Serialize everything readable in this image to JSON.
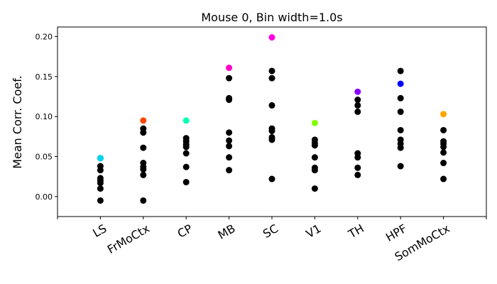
{
  "chart_data": {
    "type": "scatter",
    "title": "Mouse 0, Bin width=1.0s",
    "xlabel": "",
    "ylabel": "Mean Corr. Coef.",
    "ylim": [
      -0.025,
      0.212
    ],
    "yticks": [
      0.0,
      0.05,
      0.1,
      0.15,
      0.2
    ],
    "ytick_labels": [
      "0.00",
      "0.05",
      "0.10",
      "0.15",
      "0.20"
    ],
    "grid": false,
    "categories": [
      "LS",
      "FrMoCtx",
      "CP",
      "MB",
      "SC",
      "V1",
      "TH",
      "HPF",
      "SomMoCtx"
    ],
    "groups": [
      {
        "category": "LS",
        "highlight": {
          "value": 0.048,
          "color": "#00d4f0"
        },
        "values": [
          0.048,
          0.038,
          0.033,
          0.023,
          0.02,
          0.017,
          0.01,
          -0.005
        ]
      },
      {
        "category": "FrMoCtx",
        "highlight": {
          "value": 0.095,
          "color": "#ff4500"
        },
        "values": [
          0.085,
          0.08,
          0.061,
          0.042,
          0.037,
          0.034,
          0.027,
          -0.005
        ]
      },
      {
        "category": "CP",
        "highlight": {
          "value": 0.095,
          "color": "#00ffb4"
        },
        "values": [
          0.073,
          0.069,
          0.065,
          0.062,
          0.054,
          0.037,
          0.018
        ]
      },
      {
        "category": "MB",
        "highlight": {
          "value": 0.161,
          "color": "#ff00c8"
        },
        "values": [
          0.148,
          0.123,
          0.121,
          0.08,
          0.07,
          0.063,
          0.049,
          0.033
        ]
      },
      {
        "category": "SC",
        "highlight": {
          "value": 0.199,
          "color": "#ff00e6"
        },
        "values": [
          0.157,
          0.148,
          0.114,
          0.085,
          0.082,
          0.074,
          0.071,
          0.022
        ]
      },
      {
        "category": "V1",
        "highlight": {
          "value": 0.092,
          "color": "#80ff00"
        },
        "values": [
          0.071,
          0.067,
          0.064,
          0.049,
          0.036,
          0.033,
          0.01
        ]
      },
      {
        "category": "TH",
        "highlight": {
          "value": 0.131,
          "color": "#8a00ff"
        },
        "values": [
          0.121,
          0.114,
          0.106,
          0.054,
          0.049,
          0.036,
          0.027
        ]
      },
      {
        "category": "HPF",
        "highlight": {
          "value": 0.141,
          "color": "#0000ff"
        },
        "values": [
          0.157,
          0.123,
          0.106,
          0.083,
          0.071,
          0.066,
          0.061,
          0.038
        ]
      },
      {
        "category": "SomMoCtx",
        "highlight": {
          "value": 0.103,
          "color": "#ffa500"
        },
        "values": [
          0.083,
          0.069,
          0.066,
          0.062,
          0.055,
          0.042,
          0.022
        ]
      }
    ],
    "point_color": "#000000"
  }
}
